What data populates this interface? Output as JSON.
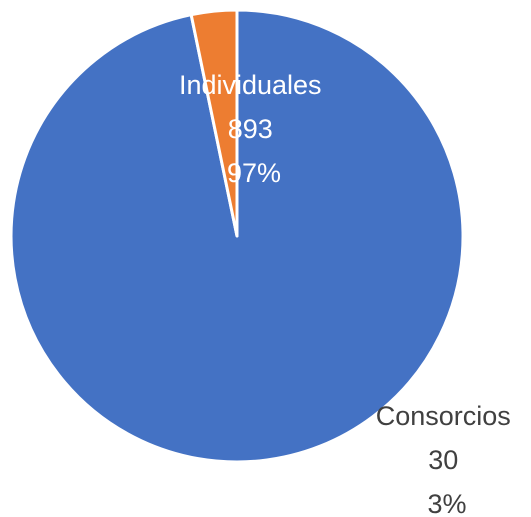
{
  "chart_data": {
    "type": "pie",
    "title": "",
    "slices": [
      {
        "category": "Individuales",
        "value": 893,
        "percent_label": "97%",
        "color": "#4472C4",
        "label_color": "#ffffff"
      },
      {
        "category": "Consorcios",
        "value": 30,
        "percent_label": "3%",
        "color": "#ED7D31",
        "label_color": "#404040"
      }
    ],
    "slice_border_color": "#ffffff",
    "start_angle_deg": 0,
    "direction": "clockwise",
    "legend": "none"
  }
}
